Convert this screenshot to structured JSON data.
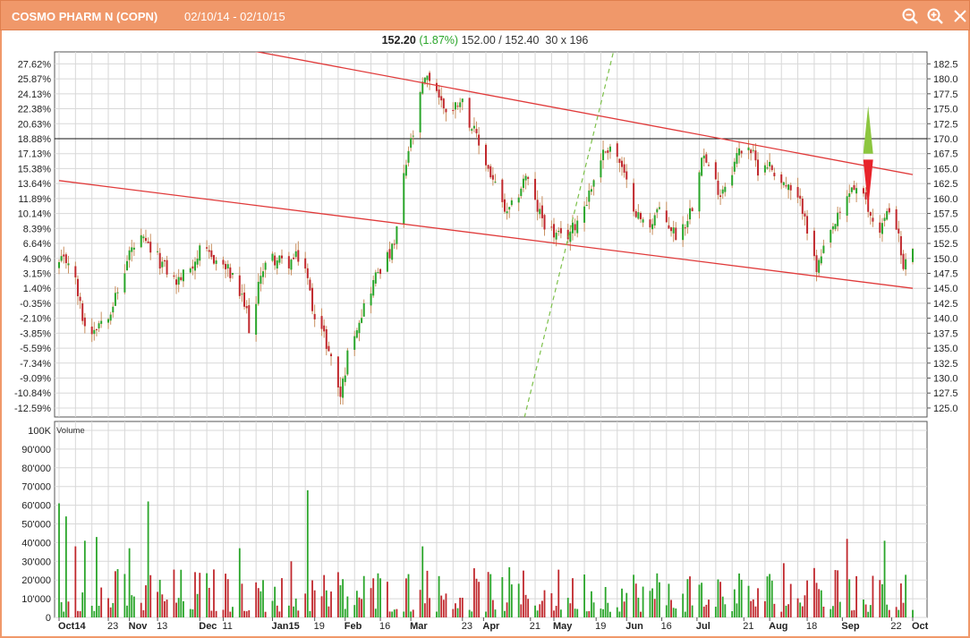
{
  "window": {
    "title": "COSMO PHARM N (COPN)",
    "date_range": "02/10/14 - 02/10/15",
    "zoom_out_icon": "zoom-out-icon",
    "zoom_in_icon": "zoom-in-icon"
  },
  "quote": {
    "last": "152.20",
    "change": "(1.87%)",
    "bid_ask": "152.00 / 152.40",
    "size": "30 x 196"
  },
  "colors": {
    "titlebar": "#f0986a",
    "up": "#2aa52a",
    "down": "#c0282d",
    "trendline": "#e03a3a",
    "dashed_trend": "#7cc04a",
    "grid": "#d8d8d8",
    "arrow_up": "#8cc63f",
    "arrow_down": "#e8232a"
  },
  "chart_data": [
    {
      "type": "candlestick",
      "name": "price",
      "y_right_ticks": [
        "182.5",
        "180.0",
        "177.5",
        "175.0",
        "172.5",
        "170.0",
        "167.5",
        "165.0",
        "162.5",
        "160.0",
        "157.5",
        "155.0",
        "152.5",
        "150.0",
        "147.5",
        "145.0",
        "142.5",
        "140.0",
        "137.5",
        "135.0",
        "132.5",
        "130.0",
        "127.5",
        "125.0"
      ],
      "y_left_ticks": [
        "27.62%",
        "25.87%",
        "24.13%",
        "22.38%",
        "20.63%",
        "18.88%",
        "17.13%",
        "15.38%",
        "13.64%",
        "11.89%",
        "10.14%",
        "8.39%",
        "6.64%",
        "4.90%",
        "3.15%",
        "1.40%",
        "-0.35%",
        "-2.10%",
        "-3.85%",
        "-5.59%",
        "-7.34%",
        "-9.09%",
        "-10.84%",
        "-12.59%"
      ],
      "ylim": [
        123.5,
        184.5
      ],
      "horizontal_line": 170.0,
      "x_labels": [
        {
          "label": "Oct14",
          "day": 0,
          "bold": true
        },
        {
          "label": "23",
          "day": 21,
          "bold": false
        },
        {
          "label": "Nov",
          "day": 30,
          "bold": true
        },
        {
          "label": "13",
          "day": 42,
          "bold": false
        },
        {
          "label": "Dec",
          "day": 60,
          "bold": true
        },
        {
          "label": "11",
          "day": 70,
          "bold": false
        },
        {
          "label": "Jan15",
          "day": 91,
          "bold": true
        },
        {
          "label": "19",
          "day": 109,
          "bold": false
        },
        {
          "label": "Feb",
          "day": 122,
          "bold": true
        },
        {
          "label": "16",
          "day": 137,
          "bold": false
        },
        {
          "label": "Mar",
          "day": 150,
          "bold": true
        },
        {
          "label": "23",
          "day": 172,
          "bold": false
        },
        {
          "label": "Apr",
          "day": 181,
          "bold": true
        },
        {
          "label": "21",
          "day": 201,
          "bold": false
        },
        {
          "label": "May",
          "day": 211,
          "bold": true
        },
        {
          "label": "19",
          "day": 229,
          "bold": false
        },
        {
          "label": "Jun",
          "day": 242,
          "bold": true
        },
        {
          "label": "16",
          "day": 257,
          "bold": false
        },
        {
          "label": "Jul",
          "day": 272,
          "bold": true
        },
        {
          "label": "21",
          "day": 292,
          "bold": false
        },
        {
          "label": "Aug",
          "day": 303,
          "bold": true
        },
        {
          "label": "18",
          "day": 319,
          "bold": false
        },
        {
          "label": "Sep",
          "day": 334,
          "bold": true
        },
        {
          "label": "22",
          "day": 355,
          "bold": false
        },
        {
          "label": "Oct",
          "day": 364,
          "bold": true
        }
      ],
      "key_points": [
        [
          0,
          149.0
        ],
        [
          5,
          150.0
        ],
        [
          9,
          142.0
        ],
        [
          12,
          137.0
        ],
        [
          16,
          139.0
        ],
        [
          21,
          141.0
        ],
        [
          26,
          145.0
        ],
        [
          30,
          151.0
        ],
        [
          35,
          153.0
        ],
        [
          40,
          151.0
        ],
        [
          46,
          148.0
        ],
        [
          50,
          146.0
        ],
        [
          55,
          148.0
        ],
        [
          60,
          151.0
        ],
        [
          66,
          150.0
        ],
        [
          72,
          148.0
        ],
        [
          76,
          145.0
        ],
        [
          80,
          141.0
        ],
        [
          82,
          136.0
        ],
        [
          86,
          148.0
        ],
        [
          91,
          150.0
        ],
        [
          97,
          149.0
        ],
        [
          101,
          150.0
        ],
        [
          104,
          150.5
        ],
        [
          108,
          142.0
        ],
        [
          113,
          137.0
        ],
        [
          117,
          132.0
        ],
        [
          120,
          127.0
        ],
        [
          124,
          136.0
        ],
        [
          128,
          140.0
        ],
        [
          132,
          144.0
        ],
        [
          136,
          148.0
        ],
        [
          140,
          150.0
        ],
        [
          143,
          152.0
        ],
        [
          146,
          161.0
        ],
        [
          149,
          168.0
        ],
        [
          152,
          172.0
        ],
        [
          155,
          179.0
        ],
        [
          159,
          180.5
        ],
        [
          163,
          176.0
        ],
        [
          167,
          174.0
        ],
        [
          171,
          177.0
        ],
        [
          175,
          173.0
        ],
        [
          179,
          169.0
        ],
        [
          183,
          165.0
        ],
        [
          187,
          161.0
        ],
        [
          191,
          157.0
        ],
        [
          195,
          160.0
        ],
        [
          199,
          164.0
        ],
        [
          203,
          159.0
        ],
        [
          207,
          156.0
        ],
        [
          211,
          154.0
        ],
        [
          215,
          153.0
        ],
        [
          219,
          155.0
        ],
        [
          223,
          158.0
        ],
        [
          227,
          162.0
        ],
        [
          231,
          167.0
        ],
        [
          235,
          169.0
        ],
        [
          239,
          166.0
        ],
        [
          243,
          161.0
        ],
        [
          247,
          157.0
        ],
        [
          251,
          155.0
        ],
        [
          255,
          158.0
        ],
        [
          259,
          156.0
        ],
        [
          263,
          154.0
        ],
        [
          267,
          156.0
        ],
        [
          271,
          160.0
        ],
        [
          274,
          168.0
        ],
        [
          278,
          164.0
        ],
        [
          282,
          161.0
        ],
        [
          286,
          164.0
        ],
        [
          290,
          168.0
        ],
        [
          294,
          169.0
        ],
        [
          298,
          165.0
        ],
        [
          302,
          166.0
        ],
        [
          306,
          164.0
        ],
        [
          310,
          162.0
        ],
        [
          314,
          160.0
        ],
        [
          318,
          158.0
        ],
        [
          320,
          152.0
        ],
        [
          323,
          148.0
        ],
        [
          326,
          151.0
        ],
        [
          330,
          155.0
        ],
        [
          334,
          158.0
        ],
        [
          338,
          162.0
        ],
        [
          342,
          161.0
        ],
        [
          346,
          157.0
        ],
        [
          350,
          155.0
        ],
        [
          354,
          158.0
        ],
        [
          357,
          156.0
        ],
        [
          360,
          148.0
        ],
        [
          362,
          150.0
        ],
        [
          364,
          152.2
        ]
      ]
    },
    {
      "type": "bar",
      "name": "volume",
      "label": "Volume",
      "y_ticks": [
        "100K",
        "90'000",
        "80'000",
        "70'000",
        "60'000",
        "50'000",
        "40'000",
        "30'000",
        "20'000",
        "10'000",
        "0"
      ],
      "ylim": [
        0,
        100000
      ],
      "spikes": [
        [
          0,
          61000
        ],
        [
          3,
          54000
        ],
        [
          7,
          38000
        ],
        [
          11,
          41000
        ],
        [
          16,
          43000
        ],
        [
          30,
          37000
        ],
        [
          38,
          62000
        ],
        [
          77,
          37000
        ],
        [
          95,
          21000
        ],
        [
          99,
          30000
        ],
        [
          103,
          71000
        ],
        [
          106,
          68000
        ],
        [
          118,
          65000
        ],
        [
          124,
          40000
        ],
        [
          139,
          92000
        ],
        [
          155,
          38000
        ],
        [
          167,
          54000
        ],
        [
          236,
          37000
        ],
        [
          258,
          47000
        ],
        [
          271,
          49000
        ],
        [
          286,
          40000
        ],
        [
          309,
          29000
        ],
        [
          336,
          42000
        ],
        [
          352,
          41000
        ]
      ]
    },
    {
      "type": "line",
      "name": "trendlines",
      "lines": [
        {
          "from": [
            78,
            185.0
          ],
          "to": [
            364,
            164.0
          ],
          "style": "solid"
        },
        {
          "from": [
            0,
            163.0
          ],
          "to": [
            364,
            145.0
          ],
          "style": "solid"
        },
        {
          "from": [
            196,
            119.5
          ],
          "to": [
            237,
            185.5
          ],
          "style": "dashed"
        }
      ],
      "arrows": [
        {
          "day": 345,
          "from": 167.5,
          "to": 175.5,
          "direction": "up"
        },
        {
          "day": 345,
          "from": 166.5,
          "to": 158.5,
          "direction": "down"
        }
      ]
    }
  ]
}
